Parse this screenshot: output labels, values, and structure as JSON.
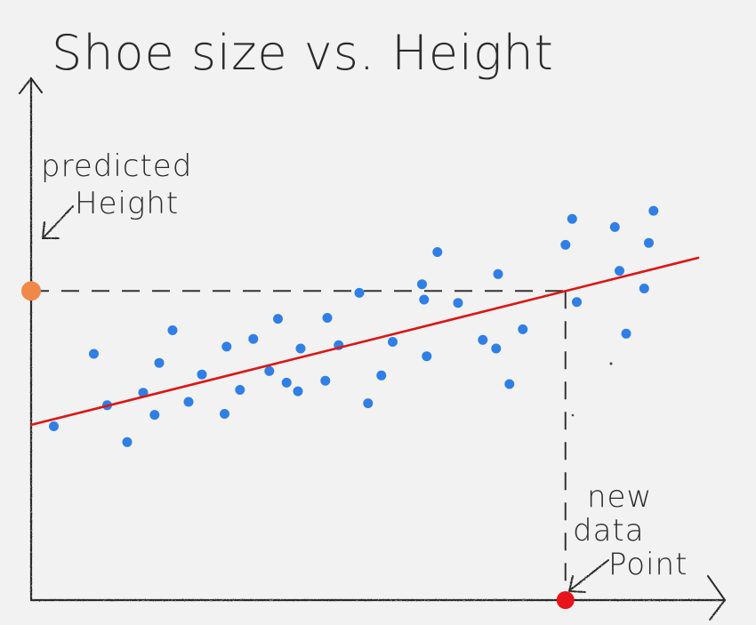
{
  "chart_data": {
    "type": "scatter",
    "title": "Shoe size vs. Height",
    "xlabel": "",
    "ylabel": "",
    "xlim": [
      0,
      100
    ],
    "ylim": [
      0,
      100
    ],
    "grid": false,
    "points": [
      {
        "x": 3.4,
        "y": 36.2
      },
      {
        "x": 9.4,
        "y": 51.3
      },
      {
        "x": 11.4,
        "y": 40.6
      },
      {
        "x": 14.4,
        "y": 32.9
      },
      {
        "x": 16.8,
        "y": 43.2
      },
      {
        "x": 18.5,
        "y": 38.6
      },
      {
        "x": 19.2,
        "y": 49.4
      },
      {
        "x": 21.2,
        "y": 56.2
      },
      {
        "x": 23.6,
        "y": 41.3
      },
      {
        "x": 25.6,
        "y": 47.0
      },
      {
        "x": 29.0,
        "y": 38.8
      },
      {
        "x": 29.3,
        "y": 52.8
      },
      {
        "x": 31.3,
        "y": 43.8
      },
      {
        "x": 33.3,
        "y": 54.4
      },
      {
        "x": 35.7,
        "y": 47.7
      },
      {
        "x": 37.0,
        "y": 58.6
      },
      {
        "x": 38.3,
        "y": 45.3
      },
      {
        "x": 40.0,
        "y": 43.5
      },
      {
        "x": 40.4,
        "y": 52.4
      },
      {
        "x": 44.1,
        "y": 45.7
      },
      {
        "x": 44.4,
        "y": 58.8
      },
      {
        "x": 46.1,
        "y": 53.1
      },
      {
        "x": 49.2,
        "y": 64.0
      },
      {
        "x": 50.5,
        "y": 41.0
      },
      {
        "x": 52.5,
        "y": 46.8
      },
      {
        "x": 54.2,
        "y": 53.8
      },
      {
        "x": 58.6,
        "y": 65.8
      },
      {
        "x": 58.9,
        "y": 62.6
      },
      {
        "x": 59.3,
        "y": 50.8
      },
      {
        "x": 60.9,
        "y": 72.5
      },
      {
        "x": 64.0,
        "y": 61.9
      },
      {
        "x": 67.7,
        "y": 54.2
      },
      {
        "x": 69.7,
        "y": 52.4
      },
      {
        "x": 70.0,
        "y": 67.9
      },
      {
        "x": 71.7,
        "y": 45.0
      },
      {
        "x": 73.7,
        "y": 56.4
      },
      {
        "x": 80.1,
        "y": 74.0
      },
      {
        "x": 81.1,
        "y": 79.4
      },
      {
        "x": 81.8,
        "y": 62.1
      },
      {
        "x": 87.5,
        "y": 77.7
      },
      {
        "x": 88.2,
        "y": 68.6
      },
      {
        "x": 89.2,
        "y": 55.5
      },
      {
        "x": 91.9,
        "y": 64.9
      },
      {
        "x": 92.6,
        "y": 74.4
      },
      {
        "x": 93.3,
        "y": 81.1
      }
    ],
    "trend_line": {
      "x": [
        0,
        100
      ],
      "y": [
        36.5,
        71.3
      ]
    },
    "new_data_point": {
      "x": 80.1,
      "y": 0,
      "label": "new data Point",
      "label_lines": [
        "new",
        "data",
        "Point"
      ]
    },
    "predicted_point": {
      "x": 0,
      "y": 64.4,
      "label": "predicted Height",
      "label_lines": [
        "predicted",
        "Height"
      ]
    },
    "colors": {
      "points": "#2f7fe6",
      "trend_line": "#e01414",
      "new_data_point": "#e8141b",
      "predicted_point": "#f0884a",
      "axes": "#2a2a2a",
      "guides": "#333333"
    }
  }
}
